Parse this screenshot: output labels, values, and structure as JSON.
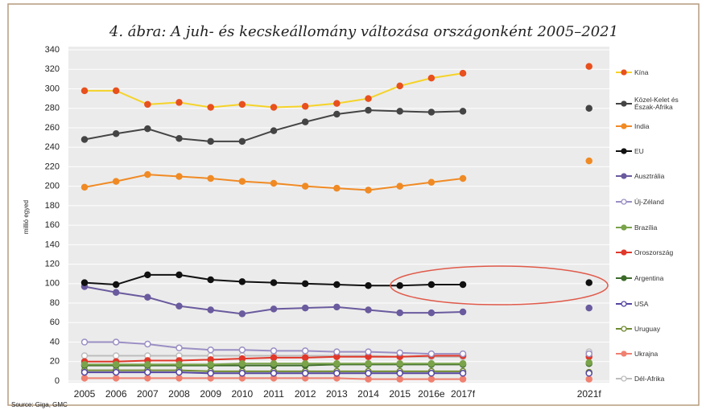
{
  "chart_data": {
    "type": "line",
    "title": "4. ábra: A juh- és kecskeállomány változása országonként 2005–2021",
    "ylabel": "millió egyed",
    "source": "Source: Giga, GMC",
    "categories": [
      "2005",
      "2006",
      "2007",
      "2008",
      "2009",
      "2010",
      "2011",
      "2012",
      "2013",
      "2014",
      "2015",
      "2016e",
      "2017f",
      null,
      null,
      null,
      "2021f"
    ],
    "ylim": [
      0,
      340
    ],
    "yticks": [
      0,
      20,
      40,
      60,
      80,
      100,
      120,
      140,
      160,
      180,
      200,
      220,
      240,
      260,
      280,
      300,
      320,
      340
    ],
    "grid": true,
    "legend": "right",
    "series": [
      {
        "name": "Kína",
        "color": "#f5d327",
        "marker_color": "#e8501e",
        "marker": "filled",
        "values": [
          298,
          298,
          284,
          286,
          281,
          284,
          281,
          282,
          285,
          290,
          303,
          311,
          316,
          null,
          null,
          null,
          323
        ]
      },
      {
        "name": "Közel-Kelet és Észak-Afrika",
        "color": "#444444",
        "marker": "filled",
        "values": [
          248,
          254,
          259,
          249,
          246,
          246,
          257,
          266,
          274,
          278,
          277,
          276,
          277,
          null,
          null,
          null,
          280
        ]
      },
      {
        "name": "India",
        "color": "#f08a24",
        "marker": "filled",
        "values": [
          199,
          205,
          212,
          210,
          208,
          205,
          203,
          200,
          198,
          196,
          200,
          204,
          208,
          null,
          null,
          null,
          226
        ]
      },
      {
        "name": "EU",
        "color": "#111111",
        "marker": "filled",
        "values": [
          101,
          99,
          109,
          109,
          104,
          102,
          101,
          100,
          99,
          98,
          98,
          99,
          99,
          null,
          null,
          null,
          101
        ]
      },
      {
        "name": "Ausztrália",
        "color": "#6a5a9e",
        "marker": "filled",
        "values": [
          97,
          91,
          86,
          77,
          73,
          69,
          74,
          75,
          76,
          73,
          70,
          70,
          71,
          null,
          null,
          null,
          75
        ]
      },
      {
        "name": "Új-Zéland",
        "color": "#9b8fc4",
        "marker": "hollow",
        "values": [
          40,
          40,
          38,
          34,
          32,
          32,
          31,
          31,
          30,
          30,
          29,
          28,
          28,
          null,
          null,
          null,
          28
        ]
      },
      {
        "name": "Brazília",
        "color": "#7aa34a",
        "marker": "filled",
        "values": [
          17,
          17,
          17,
          17,
          17,
          18,
          18,
          18,
          18,
          18,
          18,
          18,
          18,
          null,
          null,
          null,
          19
        ]
      },
      {
        "name": "Oroszország",
        "color": "#e0382a",
        "marker": "filled",
        "values": [
          20,
          20,
          21,
          21,
          22,
          23,
          24,
          24,
          25,
          25,
          25,
          26,
          26,
          null,
          null,
          null,
          25
        ]
      },
      {
        "name": "Argentina",
        "color": "#3d6b2a",
        "marker": "filled",
        "values": [
          16,
          16,
          16,
          16,
          16,
          16,
          16,
          16,
          17,
          17,
          17,
          17,
          17,
          null,
          null,
          null,
          18
        ]
      },
      {
        "name": "USA",
        "color": "#5545a0",
        "marker": "hollow",
        "values": [
          9,
          9,
          9,
          9,
          8,
          8,
          8,
          8,
          8,
          8,
          8,
          8,
          8,
          null,
          null,
          null,
          8
        ]
      },
      {
        "name": "Uruguay",
        "color": "#6f8a30",
        "marker": "hollow",
        "values": [
          11,
          11,
          11,
          11,
          10,
          10,
          10,
          10,
          10,
          10,
          10,
          10,
          10,
          null,
          null,
          null,
          9
        ]
      },
      {
        "name": "Ukrajna",
        "color": "#f08070",
        "marker": "filled",
        "values": [
          3,
          3,
          3,
          3,
          3,
          3,
          3,
          3,
          3,
          2,
          2,
          2,
          2,
          null,
          null,
          null,
          2
        ]
      },
      {
        "name": "Dél-Afrika",
        "color": "#bdbdbd",
        "marker": "hollow",
        "values": [
          26,
          26,
          26,
          26,
          26,
          26,
          26,
          26,
          26,
          26,
          25,
          25,
          25,
          null,
          null,
          null,
          30
        ]
      }
    ]
  }
}
